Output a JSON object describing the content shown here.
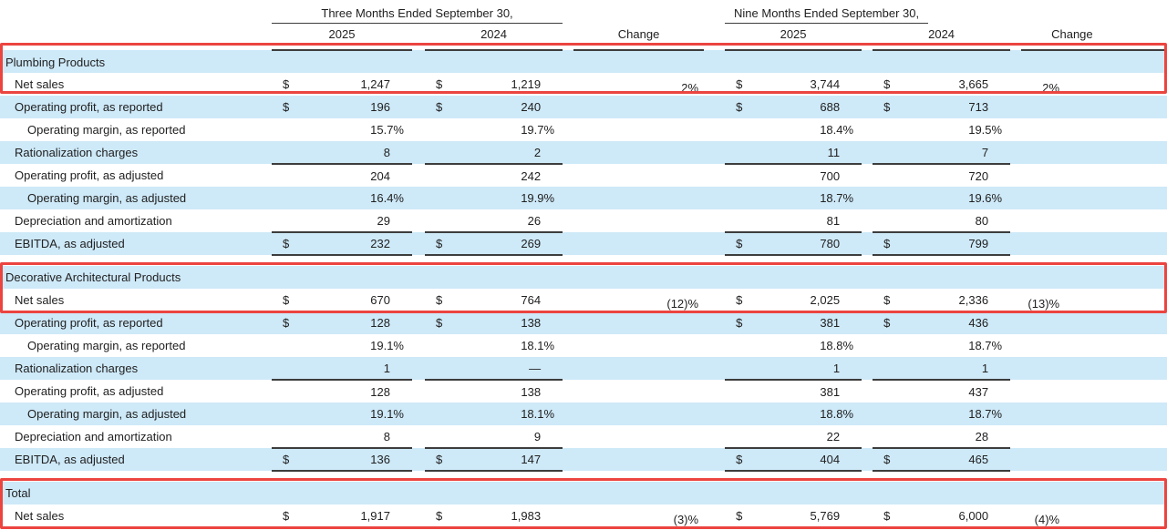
{
  "header": {
    "three_months_label": "Three Months Ended September 30,",
    "nine_months_label": "Nine Months Ended September 30,",
    "year_2025": "2025",
    "year_2024": "2024",
    "change_label": "Change",
    "dollar_sign": "$"
  },
  "colors": {
    "row_highlight_blue": "#cee9f8",
    "callout_red": "#ec4440",
    "rule_gray": "#3d3d3d"
  },
  "sections": [
    {
      "title": "Plumbing Products",
      "highlighted": true,
      "rows": [
        {
          "label": "Net sales",
          "indent": false,
          "dollar": true,
          "tm2025": "1,247",
          "tm2024": "1,219",
          "chg_tm": "2%",
          "nm2025": "3,744",
          "nm2024": "3,665",
          "chg_nm": "2%",
          "rule_below": false
        },
        {
          "label": "Operating profit, as reported",
          "indent": false,
          "dollar": true,
          "tm2025": "196",
          "tm2024": "240",
          "chg_tm": "",
          "nm2025": "688",
          "nm2024": "713",
          "chg_nm": "",
          "rule_below": false
        },
        {
          "label": "Operating margin, as reported",
          "indent": true,
          "dollar": false,
          "tm2025": "15.7%",
          "tm2024": "19.7%",
          "chg_tm": "",
          "nm2025": "18.4%",
          "nm2024": "19.5%",
          "chg_nm": "",
          "rule_below": false
        },
        {
          "label": "Rationalization charges",
          "indent": false,
          "dollar": false,
          "tm2025": "8",
          "tm2024": "2",
          "chg_tm": "",
          "nm2025": "11",
          "nm2024": "7",
          "chg_nm": "",
          "rule_below": true
        },
        {
          "label": "Operating profit, as adjusted",
          "indent": false,
          "dollar": false,
          "tm2025": "204",
          "tm2024": "242",
          "chg_tm": "",
          "nm2025": "700",
          "nm2024": "720",
          "chg_nm": "",
          "rule_below": false
        },
        {
          "label": "Operating margin, as adjusted",
          "indent": true,
          "dollar": false,
          "tm2025": "16.4%",
          "tm2024": "19.9%",
          "chg_tm": "",
          "nm2025": "18.7%",
          "nm2024": "19.6%",
          "chg_nm": "",
          "rule_below": false
        },
        {
          "label": "Depreciation and amortization",
          "indent": false,
          "dollar": false,
          "tm2025": "29",
          "tm2024": "26",
          "chg_tm": "",
          "nm2025": "81",
          "nm2024": "80",
          "chg_nm": "",
          "rule_below": true
        },
        {
          "label": "EBITDA, as adjusted",
          "indent": false,
          "dollar": true,
          "tm2025": "232",
          "tm2024": "269",
          "chg_tm": "",
          "nm2025": "780",
          "nm2024": "799",
          "chg_nm": "",
          "rule_below": true
        }
      ]
    },
    {
      "title": "Decorative Architectural Products",
      "highlighted": true,
      "rows": [
        {
          "label": "Net sales",
          "indent": false,
          "dollar": true,
          "tm2025": "670",
          "tm2024": "764",
          "chg_tm": "(12)%",
          "nm2025": "2,025",
          "nm2024": "2,336",
          "chg_nm": "(13)%",
          "rule_below": false
        },
        {
          "label": "Operating profit, as reported",
          "indent": false,
          "dollar": true,
          "tm2025": "128",
          "tm2024": "138",
          "chg_tm": "",
          "nm2025": "381",
          "nm2024": "436",
          "chg_nm": "",
          "rule_below": false
        },
        {
          "label": "Operating margin, as reported",
          "indent": true,
          "dollar": false,
          "tm2025": "19.1%",
          "tm2024": "18.1%",
          "chg_tm": "",
          "nm2025": "18.8%",
          "nm2024": "18.7%",
          "chg_nm": "",
          "rule_below": false
        },
        {
          "label": "Rationalization charges",
          "indent": false,
          "dollar": false,
          "tm2025": "1",
          "tm2024": "—",
          "chg_tm": "",
          "nm2025": "1",
          "nm2024": "1",
          "chg_nm": "",
          "rule_below": true
        },
        {
          "label": "Operating profit, as adjusted",
          "indent": false,
          "dollar": false,
          "tm2025": "128",
          "tm2024": "138",
          "chg_tm": "",
          "nm2025": "381",
          "nm2024": "437",
          "chg_nm": "",
          "rule_below": false
        },
        {
          "label": "Operating margin, as adjusted",
          "indent": true,
          "dollar": false,
          "tm2025": "19.1%",
          "tm2024": "18.1%",
          "chg_tm": "",
          "nm2025": "18.8%",
          "nm2024": "18.7%",
          "chg_nm": "",
          "rule_below": false
        },
        {
          "label": "Depreciation and amortization",
          "indent": false,
          "dollar": false,
          "tm2025": "8",
          "tm2024": "9",
          "chg_tm": "",
          "nm2025": "22",
          "nm2024": "28",
          "chg_nm": "",
          "rule_below": true
        },
        {
          "label": "EBITDA, as adjusted",
          "indent": false,
          "dollar": true,
          "tm2025": "136",
          "tm2024": "147",
          "chg_tm": "",
          "nm2025": "404",
          "nm2024": "465",
          "chg_nm": "",
          "rule_below": true
        }
      ]
    },
    {
      "title": "Total",
      "highlighted": true,
      "rows": [
        {
          "label": "Net sales",
          "indent": false,
          "dollar": true,
          "tm2025": "1,917",
          "tm2024": "1,983",
          "chg_tm": "(3)%",
          "nm2025": "5,769",
          "nm2024": "6,000",
          "chg_nm": "(4)%",
          "rule_below": false
        }
      ]
    }
  ]
}
